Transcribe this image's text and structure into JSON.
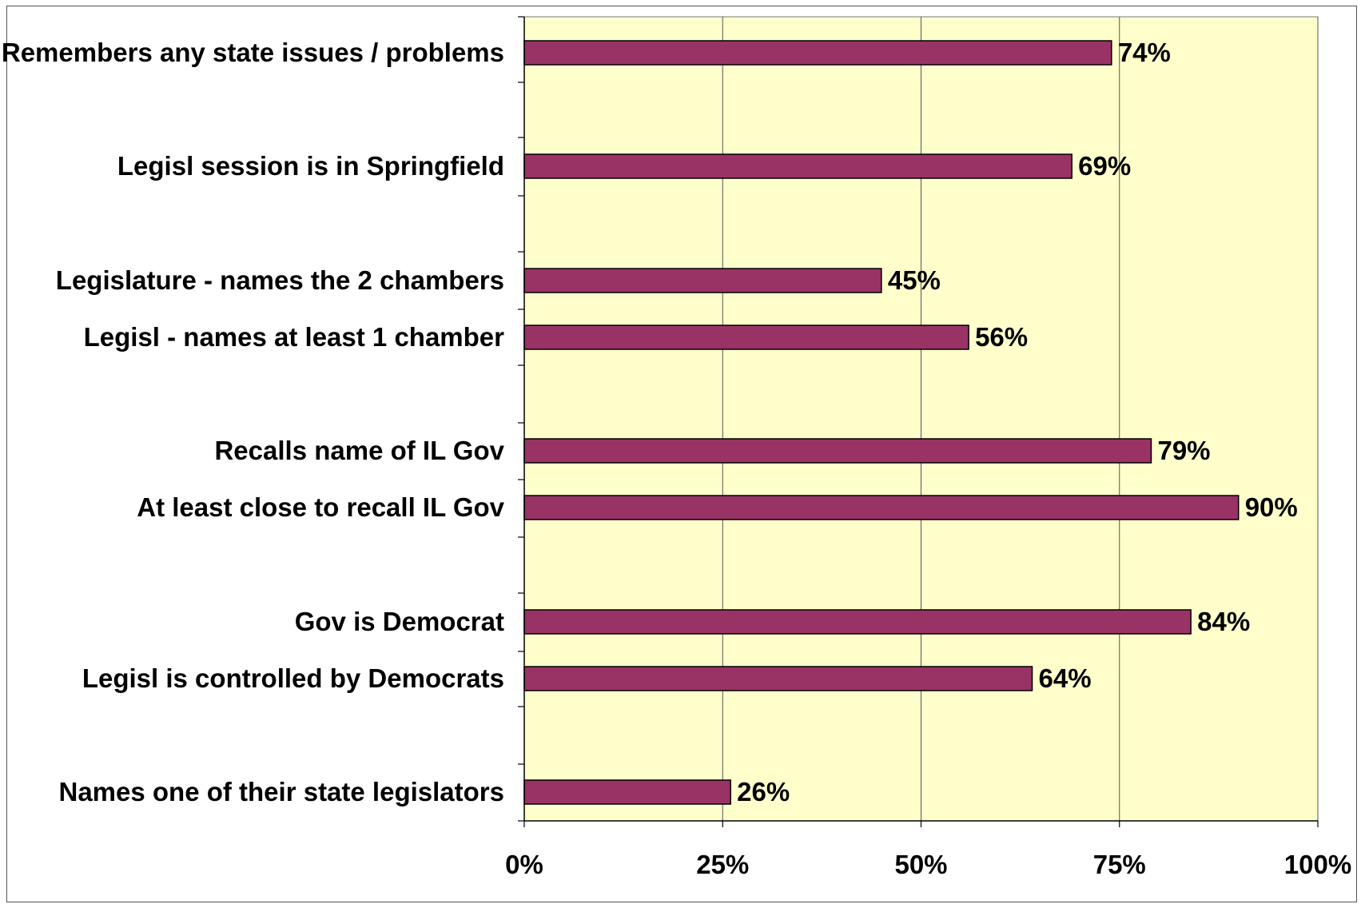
{
  "chart_data": {
    "type": "bar",
    "orientation": "horizontal",
    "title": "",
    "xlabel": "",
    "ylabel": "",
    "xlim": [
      0,
      100
    ],
    "x_ticks": [
      "0%",
      "25%",
      "50%",
      "75%",
      "100%"
    ],
    "x_tick_values": [
      0,
      25,
      50,
      75,
      100
    ],
    "grid": true,
    "legend": "none",
    "colors": {
      "bar_fill": "#993366",
      "bar_stroke": "#000000",
      "plot_background": "#FFFFCC",
      "gridline": "#555555"
    },
    "categories": [
      "Remembers any state issues / problems",
      "Legisl session is in Springfield",
      "Legislature - names the 2 chambers",
      "Legisl - names at least 1 chamber",
      "Recalls name of IL Gov",
      "At least close to recall IL Gov",
      "Gov is Democrat",
      "Legisl is controlled by Democrats",
      "Names one of their state legislators"
    ],
    "values": [
      74,
      69,
      45,
      56,
      79,
      90,
      84,
      64,
      26
    ],
    "value_labels": [
      "74%",
      "69%",
      "45%",
      "56%",
      "79%",
      "90%",
      "84%",
      "64%",
      "26%"
    ]
  }
}
